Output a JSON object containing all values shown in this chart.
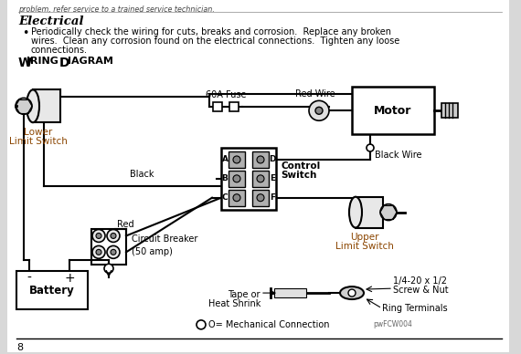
{
  "bg_color": "#d8d8d8",
  "page_bg": "#ffffff",
  "title_electrical": "Electrical",
  "bullet_text1": "Periodically check the wiring for cuts, breaks and corrosion.  Replace any broken",
  "bullet_text2": "wires.  Clean any corrosion found on the electrical connections.  Tighten any loose",
  "bullet_text3": "connections.",
  "section_title": "Wiring Diagram",
  "label_60a_fuse": "60A Fuse",
  "label_red_wire": "Red Wire",
  "label_motor": "Motor",
  "label_black_wire": "Black Wire",
  "label_lower_limit1": "Lower",
  "label_lower_limit2": "Limit Switch",
  "label_upper_limit1": "Upper",
  "label_upper_limit2": "Limit Switch",
  "label_control_switch1": "Control",
  "label_control_switch2": "Switch",
  "label_black": "Black",
  "label_red": "Red",
  "label_circuit_breaker1": "Circuit Breaker",
  "label_circuit_breaker2": "(50 amp)",
  "label_battery": "Battery",
  "label_tape1": "Tape or",
  "label_tape2": "Heat Shrink",
  "label_screw1": "1/4-20 x 1/2",
  "label_screw2": "Screw & Nut",
  "label_ring": "Ring Terminals",
  "label_mech": "O= Mechanical Connection",
  "label_mech_small": "pwFCW004",
  "label_letters_left": [
    "A",
    "B",
    "C"
  ],
  "label_letters_right": [
    "D",
    "E",
    "F"
  ],
  "page_number": "8",
  "top_partial_text": "problem, refer service to a trained service technician.",
  "text_color": "#000000",
  "blue_text": "#1a3a8a",
  "red_wire_color": "#cc2200",
  "gray_color": "#666666",
  "label_color": "#8b4500"
}
